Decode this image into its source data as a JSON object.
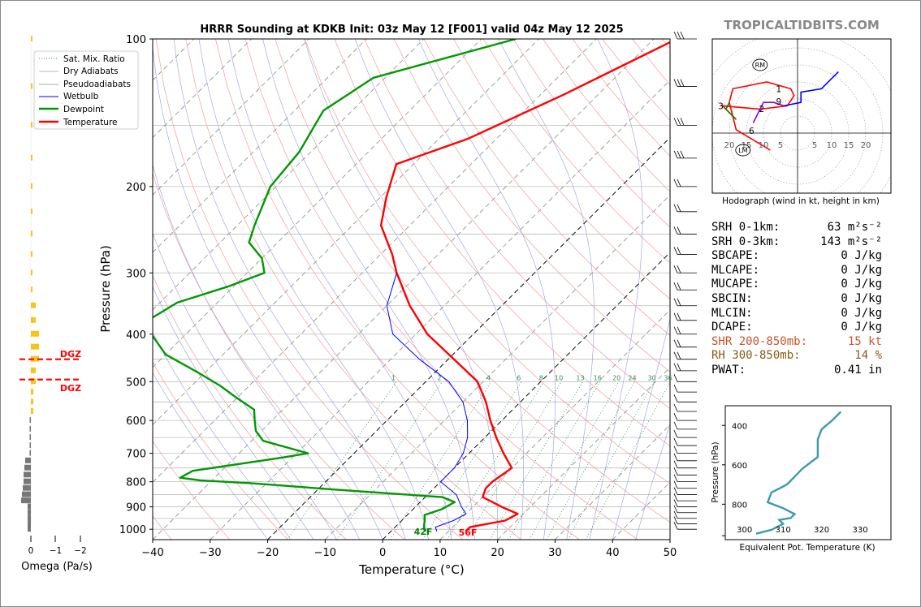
{
  "title": "HRRR Sounding at KDKB Init: 03z May 12 [F001] valid 04z May 12 2025",
  "brand": "TROPICALTIDBITS.COM",
  "chart_data": {
    "type": "line",
    "skewt": {
      "xlabel": "Temperature (°C)",
      "ylabel": "Pressure (hPa)",
      "xlim": [
        -40,
        50
      ],
      "ylim": [
        1050,
        100
      ],
      "x_ticks": [
        "−40",
        "−30",
        "−20",
        "−10",
        "0",
        "10",
        "20",
        "30",
        "40",
        "50"
      ],
      "y_ticks": [
        "100",
        "200",
        "300",
        "400",
        "500",
        "600",
        "700",
        "800",
        "900",
        "1000"
      ],
      "legend_placement": "top-left",
      "legend": [
        "Sat. Mix. Ratio",
        "Dry Adiabats",
        "Pseudoadiabats",
        "Wetbulb",
        "Dewpoint",
        "Temperature"
      ],
      "mixing_ratio_labels": [
        "1",
        "2",
        "4",
        "6",
        "8",
        "10",
        "13",
        "16",
        "20",
        "24",
        "30",
        "36"
      ],
      "surface_temp_label": "56F",
      "surface_dew_label": "42F",
      "series": [
        {
          "name": "Temperature",
          "color": "#ff0000",
          "points": [
            [
              -36,
              100
            ],
            [
              -46,
              130
            ],
            [
              -55,
              160
            ],
            [
              -63,
              180
            ],
            [
              -59,
              210
            ],
            [
              -55,
              240
            ],
            [
              -48,
              275
            ],
            [
              -44,
              300
            ],
            [
              -36,
              350
            ],
            [
              -28,
              400
            ],
            [
              -19,
              450
            ],
            [
              -11,
              500
            ],
            [
              -6,
              550
            ],
            [
              -2,
              600
            ],
            [
              2,
              650
            ],
            [
              6,
              700
            ],
            [
              10,
              750
            ],
            [
              9,
              800
            ],
            [
              9,
              825
            ],
            [
              10,
              860
            ],
            [
              15,
              900
            ],
            [
              19,
              930
            ],
            [
              18,
              960
            ],
            [
              13,
              990
            ],
            [
              13,
              1010
            ]
          ]
        },
        {
          "name": "Dewpoint",
          "color": "#008000",
          "points": [
            [
              -64,
              100
            ],
            [
              -82,
              120
            ],
            [
              -85,
              140
            ],
            [
              -82,
              170
            ],
            [
              -81,
              200
            ],
            [
              -77,
              240
            ],
            [
              -75,
              260
            ],
            [
              -70,
              280
            ],
            [
              -67,
              300
            ],
            [
              -71,
              320
            ],
            [
              -77,
              345
            ],
            [
              -79,
              375
            ],
            [
              -76,
              400
            ],
            [
              -70,
              440
            ],
            [
              -61,
              480
            ],
            [
              -55,
              510
            ],
            [
              -50,
              540
            ],
            [
              -45,
              570
            ],
            [
              -43,
              600
            ],
            [
              -41,
              630
            ],
            [
              -38,
              660
            ],
            [
              -28,
              700
            ],
            [
              -32,
              715
            ],
            [
              -45,
              760
            ],
            [
              -46,
              785
            ],
            [
              -42,
              795
            ],
            [
              -33,
              805
            ],
            [
              -17,
              830
            ],
            [
              3,
              860
            ],
            [
              6,
              880
            ],
            [
              5,
              910
            ],
            [
              3,
              935
            ],
            [
              4,
              960
            ],
            [
              5,
              990
            ],
            [
              6,
              1010
            ]
          ]
        },
        {
          "name": "Wetbulb",
          "color": "#0000ff",
          "points": [
            [
              -44,
              300
            ],
            [
              -40,
              350
            ],
            [
              -34,
              400
            ],
            [
              -25,
              450
            ],
            [
              -16,
              500
            ],
            [
              -10,
              550
            ],
            [
              -6,
              600
            ],
            [
              -3,
              650
            ],
            [
              -1,
              700
            ],
            [
              0,
              750
            ],
            [
              0,
              800
            ],
            [
              5,
              850
            ],
            [
              8,
              900
            ],
            [
              10,
              930
            ],
            [
              9,
              960
            ],
            [
              7,
              990
            ],
            [
              8,
              1010
            ]
          ]
        }
      ]
    },
    "hodograph": {
      "caption": "Hodograph (wind in kt, height in km)",
      "ring_labels": [
        "20",
        "15",
        "10",
        "5",
        "5",
        "10",
        "15",
        "20"
      ],
      "markers": [
        "RM",
        "LM"
      ],
      "height_labels": [
        "1",
        "2",
        "3",
        "6",
        "9"
      ],
      "segments": [
        {
          "color": "#ff0000",
          "points": [
            [
              -8,
              -5
            ],
            [
              -13,
              -2
            ],
            [
              -18,
              1
            ],
            [
              -20,
              9
            ],
            [
              -19,
              13
            ],
            [
              -9,
              15
            ],
            [
              -2,
              13
            ],
            [
              -1,
              11
            ],
            [
              -3,
              8
            ],
            [
              -11,
              7
            ],
            [
              -22,
              8
            ],
            [
              -18,
              4
            ]
          ]
        },
        {
          "color": "#008000",
          "points": [
            [
              -18,
              4
            ],
            [
              -21,
              7
            ],
            [
              -20,
              9
            ]
          ]
        },
        {
          "color": "#9400d3",
          "points": [
            [
              -13,
              3
            ],
            [
              -11,
              7
            ],
            [
              -10,
              9
            ],
            [
              -7,
              9
            ],
            [
              -4,
              8
            ]
          ]
        },
        {
          "color": "#0000ff",
          "points": [
            [
              -4,
              8
            ],
            [
              1,
              9
            ],
            [
              1,
              12
            ],
            [
              7,
              13
            ],
            [
              12,
              18
            ]
          ]
        }
      ]
    },
    "omega": {
      "xlabel": "Omega (Pa/s)",
      "x_ticks": [
        "0",
        "−1",
        "−2"
      ],
      "dgz_label": "DGZ",
      "dgz_levels_hpa": [
        450,
        495
      ]
    },
    "theta_e": {
      "xlabel": "Equivalent Pot. Temperature (K)",
      "ylabel": "Pressure (hPa)",
      "x_ticks": [
        "300",
        "310",
        "320",
        "330"
      ],
      "y_ticks": [
        "400",
        "600",
        "800"
      ],
      "color": "#3a9ab0",
      "points": [
        [
          325,
          330
        ],
        [
          323,
          370
        ],
        [
          320,
          420
        ],
        [
          319,
          470
        ],
        [
          319,
          560
        ],
        [
          315,
          620
        ],
        [
          313,
          660
        ],
        [
          311,
          700
        ],
        [
          307,
          740
        ],
        [
          306,
          790
        ],
        [
          310,
          820
        ],
        [
          313,
          850
        ],
        [
          312,
          870
        ],
        [
          309,
          880
        ],
        [
          310,
          900
        ],
        [
          307,
          930
        ],
        [
          303,
          950
        ]
      ]
    }
  },
  "stats": [
    {
      "label": "SRH 0-1km:",
      "value": "63 m²s⁻²",
      "color": "#000000"
    },
    {
      "label": "SRH 0-3km:",
      "value": "143 m²s⁻²",
      "color": "#000000"
    },
    {
      "label": "SBCAPE:",
      "value": "0 J/kg",
      "color": "#000000"
    },
    {
      "label": "MLCAPE:",
      "value": "0 J/kg",
      "color": "#000000"
    },
    {
      "label": "MUCAPE:",
      "value": "0 J/kg",
      "color": "#000000"
    },
    {
      "label": "SBCIN:",
      "value": "0 J/kg",
      "color": "#000000"
    },
    {
      "label": "MLCIN:",
      "value": "0 J/kg",
      "color": "#000000"
    },
    {
      "label": "DCAPE:",
      "value": "0 J/kg",
      "color": "#000000"
    },
    {
      "label": "SHR 200-850mb:",
      "value": "15 kt",
      "color": "#c8552a"
    },
    {
      "label": "RH 300-850mb:",
      "value": "14 %",
      "color": "#8a5a1a"
    },
    {
      "label": "PWAT:",
      "value": "0.41 in",
      "color": "#000000"
    }
  ]
}
